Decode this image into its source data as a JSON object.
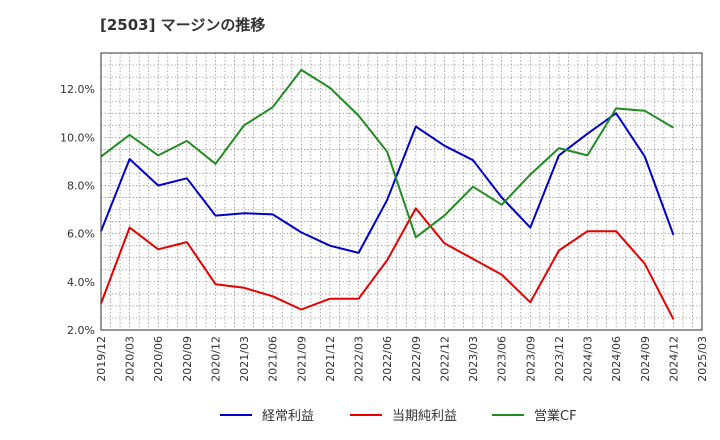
{
  "title": "[2503]  マージンの推移",
  "chart_data": {
    "type": "line",
    "title": "[2503]  マージンの推移",
    "x": [
      "2019/12",
      "2020/03",
      "2020/06",
      "2020/09",
      "2020/12",
      "2021/03",
      "2021/06",
      "2021/09",
      "2021/12",
      "2022/03",
      "2022/06",
      "2022/09",
      "2022/12",
      "2023/03",
      "2023/06",
      "2023/09",
      "2023/12",
      "2024/03",
      "2024/06",
      "2024/09",
      "2024/12"
    ],
    "x_ticks": [
      "2019/12",
      "2020/03",
      "2020/06",
      "2020/09",
      "2020/12",
      "2021/03",
      "2021/06",
      "2021/09",
      "2021/12",
      "2022/03",
      "2022/06",
      "2022/09",
      "2022/12",
      "2023/03",
      "2023/06",
      "2023/09",
      "2023/12",
      "2024/03",
      "2024/06",
      "2024/09",
      "2024/12",
      "2025/03"
    ],
    "y_ticks": [
      "2.0%",
      "4.0%",
      "6.0%",
      "8.0%",
      "10.0%",
      "12.0%"
    ],
    "ylim": [
      2.0,
      13.5
    ],
    "legend_position": "bottom",
    "grid": true,
    "series": [
      {
        "name": "経常利益",
        "color": "#0000cc",
        "values": [
          6.1,
          9.1,
          8.0,
          8.3,
          6.75,
          6.85,
          6.8,
          6.05,
          5.5,
          5.2,
          7.4,
          10.45,
          9.65,
          9.05,
          7.5,
          6.25,
          9.25,
          10.15,
          11.0,
          9.2,
          5.95
        ]
      },
      {
        "name": "当期純利益",
        "color": "#e60000",
        "values": [
          3.1,
          6.25,
          5.35,
          5.65,
          3.9,
          3.75,
          3.4,
          2.85,
          3.3,
          3.3,
          4.9,
          7.05,
          5.6,
          4.95,
          4.3,
          3.15,
          5.3,
          6.1,
          6.1,
          4.75,
          2.45
        ]
      },
      {
        "name": "営業CF",
        "color": "#228b22",
        "values": [
          9.2,
          10.1,
          9.25,
          9.85,
          8.9,
          10.5,
          11.25,
          12.8,
          12.05,
          10.9,
          9.4,
          5.85,
          6.75,
          7.95,
          7.2,
          8.45,
          9.55,
          9.25,
          11.2,
          11.1,
          10.4
        ]
      }
    ]
  }
}
